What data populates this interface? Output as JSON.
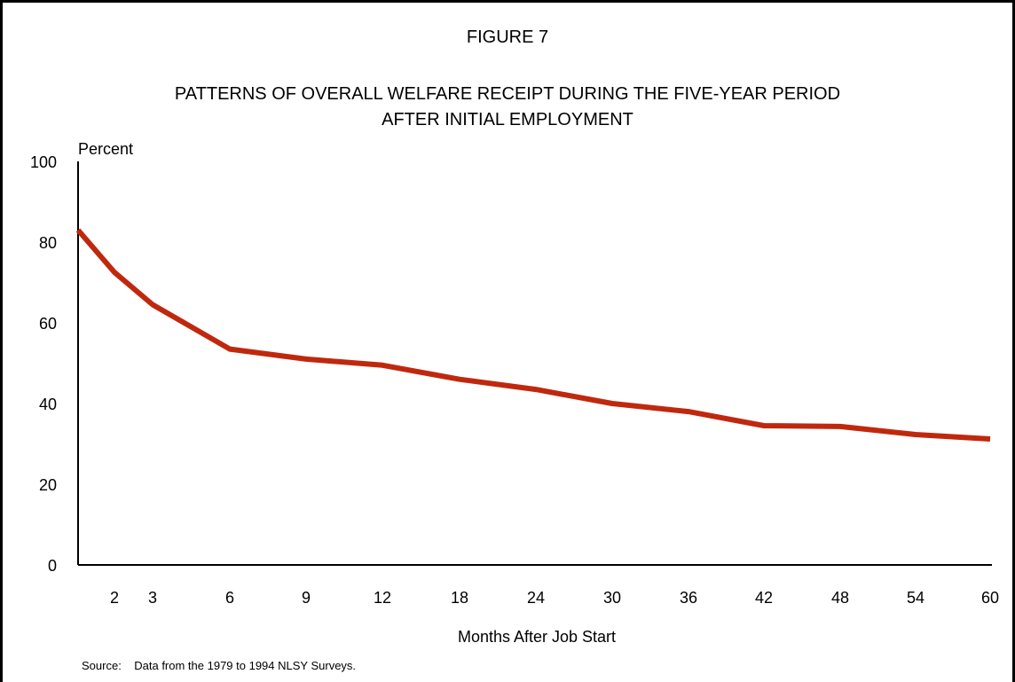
{
  "chart_data": {
    "type": "line",
    "figure_label": "FIGURE 7",
    "title_lines": [
      "PATTERNS OF OVERALL WELFARE RECEIPT DURING THE FIVE-YEAR PERIOD",
      "AFTER INITIAL  EMPLOYMENT"
    ],
    "ylabel": "Percent",
    "xlabel": "Months After Job Start",
    "source": "Source:    Data from the 1979 to 1994 NLSY Surveys.",
    "ylim": [
      0,
      100
    ],
    "yticks": [
      "0",
      "20",
      "40",
      "60",
      "80",
      "100"
    ],
    "x_tick_labels": [
      "2",
      "3",
      "6",
      "9",
      "12",
      "18",
      "24",
      "30",
      "36",
      "42",
      "48",
      "54",
      "60"
    ],
    "grid": false,
    "legend": "none",
    "series": [
      {
        "color": "#c0280e",
        "points": [
          {
            "x": "1",
            "y": 83
          },
          {
            "x": "2",
            "y": 72.5
          },
          {
            "x": "3",
            "y": 64.5
          },
          {
            "x": "6",
            "y": 53.5
          },
          {
            "x": "9",
            "y": 51
          },
          {
            "x": "12",
            "y": 49.5
          },
          {
            "x": "18",
            "y": 46
          },
          {
            "x": "24",
            "y": 43.5
          },
          {
            "x": "30",
            "y": 40
          },
          {
            "x": "36",
            "y": 38
          },
          {
            "x": "42",
            "y": 34.5
          },
          {
            "x": "48",
            "y": 34.3
          },
          {
            "x": "54",
            "y": 32.3
          },
          {
            "x": "60",
            "y": 31.2
          }
        ]
      }
    ]
  }
}
